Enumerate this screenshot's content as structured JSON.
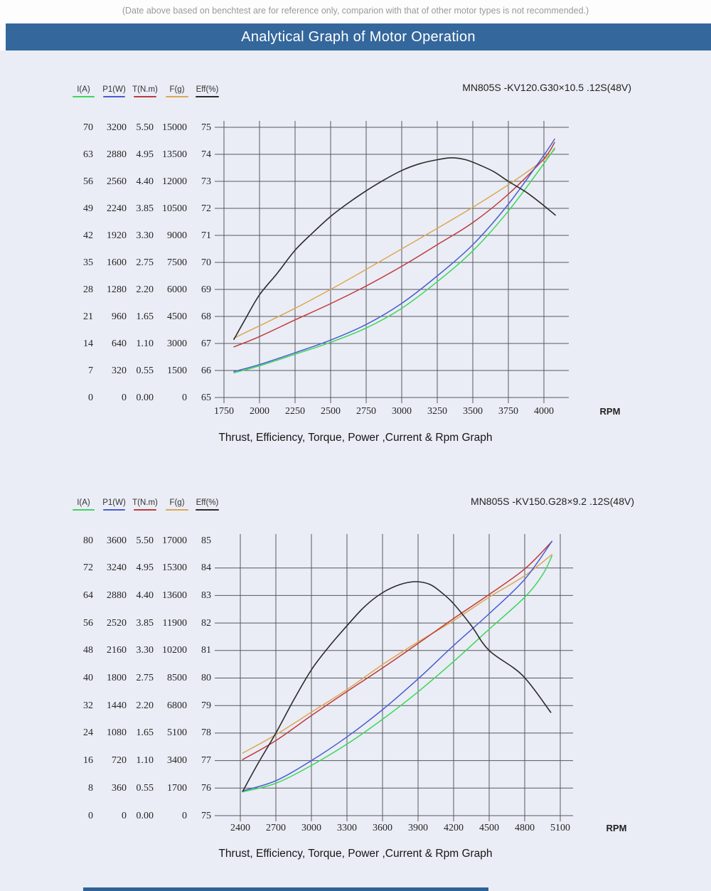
{
  "note": "(Date above based on benchtest are for reference only, comparion with that of other motor types is not recommended.)",
  "header": {
    "title": "Analytical Graph of Motor Operation"
  },
  "colors": {
    "header_bg": "#34679c",
    "page_bg": "#eaedf5",
    "grid": "#55595e",
    "current": "#3bd65a",
    "power": "#4a5cd0",
    "torque": "#c03a3c",
    "thrust": "#dca752",
    "efficiency": "#2b2b2b"
  },
  "chart_data": [
    {
      "type": "line",
      "title": "MN805S -KV120.G30×10.5 .12S(48V)",
      "caption": "Thrust, Efficiency, Torque, Power ,Current & Rpm Graph",
      "x_label": "RPM",
      "x_ticks": [
        1750,
        2000,
        2250,
        2500,
        2750,
        3000,
        3250,
        3500,
        3750,
        4000
      ],
      "x_tick_step": 250,
      "grid": true,
      "legend_position": "top-left",
      "axes": [
        {
          "name": "I(A)",
          "color_key": "current",
          "range": [
            0,
            70
          ],
          "ticks": [
            "70",
            "63",
            "56",
            "49",
            "42",
            "35",
            "28",
            "21",
            "14",
            "7",
            "0"
          ]
        },
        {
          "name": "P1(W)",
          "color_key": "power",
          "range": [
            0,
            3200
          ],
          "ticks": [
            "3200",
            "2880",
            "2560",
            "2240",
            "1920",
            "1600",
            "1280",
            "960",
            "640",
            "320",
            "0"
          ]
        },
        {
          "name": "T(N.m)",
          "color_key": "torque",
          "range": [
            0,
            5.5
          ],
          "ticks": [
            "5.50",
            "4.95",
            "4.40",
            "3.85",
            "3.30",
            "2.75",
            "2.20",
            "1.65",
            "1.10",
            "0.55",
            "0.00"
          ]
        },
        {
          "name": "F(g)",
          "color_key": "thrust",
          "range": [
            0,
            15000
          ],
          "ticks": [
            "15000",
            "13500",
            "12000",
            "10500",
            "9000",
            "7500",
            "6000",
            "4500",
            "3000",
            "1500",
            "0"
          ]
        },
        {
          "name": "Eff(%)",
          "color_key": "efficiency",
          "range": [
            65,
            75
          ],
          "ticks": [
            "75",
            "74",
            "73",
            "72",
            "71",
            "70",
            "69",
            "68",
            "67",
            "66",
            "65"
          ]
        }
      ],
      "series": [
        {
          "name": "I(A)",
          "axis": 0,
          "points": [
            [
              1820,
              6.4
            ],
            [
              2000,
              8.2
            ],
            [
              2250,
              11.2
            ],
            [
              2500,
              14.3
            ],
            [
              2750,
              18.0
            ],
            [
              3000,
              23.1
            ],
            [
              3250,
              30.0
            ],
            [
              3500,
              38.0
            ],
            [
              3750,
              48.3
            ],
            [
              4000,
              60.6
            ],
            [
              4075,
              64.6
            ]
          ]
        },
        {
          "name": "P1(W)",
          "axis": 1,
          "points": [
            [
              1820,
              307
            ],
            [
              2000,
              390
            ],
            [
              2250,
              530
            ],
            [
              2500,
              680
            ],
            [
              2750,
              865
            ],
            [
              3000,
              1115
            ],
            [
              3250,
              1440
            ],
            [
              3500,
              1810
            ],
            [
              3750,
              2290
            ],
            [
              4000,
              2870
            ],
            [
              4075,
              3060
            ]
          ]
        },
        {
          "name": "T(N.m)",
          "axis": 2,
          "points": [
            [
              1820,
              1.03
            ],
            [
              2000,
              1.24
            ],
            [
              2250,
              1.58
            ],
            [
              2500,
              1.91
            ],
            [
              2750,
              2.27
            ],
            [
              3000,
              2.67
            ],
            [
              3250,
              3.11
            ],
            [
              3500,
              3.56
            ],
            [
              3750,
              4.14
            ],
            [
              4000,
              4.86
            ],
            [
              4075,
              5.19
            ]
          ]
        },
        {
          "name": "F(g)",
          "axis": 3,
          "points": [
            [
              1820,
              3300
            ],
            [
              2000,
              3980
            ],
            [
              2250,
              4950
            ],
            [
              2500,
              6000
            ],
            [
              2750,
              7110
            ],
            [
              3000,
              8250
            ],
            [
              3250,
              9390
            ],
            [
              3500,
              10560
            ],
            [
              3750,
              11810
            ],
            [
              4000,
              13200
            ],
            [
              4075,
              13760
            ]
          ]
        },
        {
          "name": "Eff(%)",
          "axis": 4,
          "points": [
            [
              1820,
              67.15
            ],
            [
              1900,
              67.9
            ],
            [
              2000,
              68.8
            ],
            [
              2125,
              69.6
            ],
            [
              2250,
              70.45
            ],
            [
              2375,
              71.1
            ],
            [
              2500,
              71.7
            ],
            [
              2625,
              72.2
            ],
            [
              2750,
              72.65
            ],
            [
              2875,
              73.05
            ],
            [
              3000,
              73.4
            ],
            [
              3125,
              73.65
            ],
            [
              3250,
              73.8
            ],
            [
              3350,
              73.87
            ],
            [
              3450,
              73.8
            ],
            [
              3550,
              73.6
            ],
            [
              3650,
              73.35
            ],
            [
              3750,
              73.0
            ],
            [
              3875,
              72.6
            ],
            [
              4000,
              72.1
            ],
            [
              4080,
              71.75
            ]
          ]
        }
      ]
    },
    {
      "type": "line",
      "title": "MN805S -KV150.G28×9.2 .12S(48V)",
      "caption": "Thrust, Efficiency, Torque, Power ,Current & Rpm Graph",
      "x_label": "RPM",
      "x_ticks": [
        2400,
        2700,
        3000,
        3300,
        3600,
        3900,
        4200,
        4500,
        4800,
        5100
      ],
      "x_tick_step": 300,
      "grid": true,
      "legend_position": "top-left",
      "axes": [
        {
          "name": "I(A)",
          "color_key": "current",
          "range": [
            0,
            80
          ],
          "ticks": [
            "80",
            "72",
            "64",
            "56",
            "48",
            "40",
            "32",
            "24",
            "16",
            "8",
            "0"
          ]
        },
        {
          "name": "P1(W)",
          "color_key": "power",
          "range": [
            0,
            3600
          ],
          "ticks": [
            "3600",
            "3240",
            "2880",
            "2520",
            "2160",
            "1800",
            "1440",
            "1080",
            "720",
            "360",
            "0"
          ]
        },
        {
          "name": "T(N.m)",
          "color_key": "torque",
          "range": [
            0,
            5.5
          ],
          "ticks": [
            "5.50",
            "4.95",
            "4.40",
            "3.85",
            "3.30",
            "2.75",
            "2.20",
            "1.65",
            "1.10",
            "0.55",
            "0.00"
          ]
        },
        {
          "name": "F(g)",
          "color_key": "thrust",
          "range": [
            0,
            17000
          ],
          "ticks": [
            "17000",
            "15300",
            "13600",
            "11900",
            "10200",
            "8500",
            "6800",
            "5100",
            "3400",
            "1700",
            "0"
          ]
        },
        {
          "name": "Eff(%)",
          "color_key": "efficiency",
          "range": [
            75,
            85
          ],
          "ticks": [
            "85",
            "84",
            "83",
            "82",
            "81",
            "80",
            "79",
            "78",
            "77",
            "76",
            "75"
          ]
        }
      ],
      "series": [
        {
          "name": "I(A)",
          "axis": 0,
          "points": [
            [
              2420,
              6.9
            ],
            [
              2700,
              9.4
            ],
            [
              3000,
              14.6
            ],
            [
              3300,
              20.8
            ],
            [
              3600,
              28.0
            ],
            [
              3900,
              36.0
            ],
            [
              4200,
              44.8
            ],
            [
              4500,
              54.2
            ],
            [
              4800,
              63.5
            ],
            [
              4950,
              70.0
            ],
            [
              5030,
              75.5
            ]
          ]
        },
        {
          "name": "P1(W)",
          "axis": 1,
          "points": [
            [
              2420,
              324
            ],
            [
              2700,
              457
            ],
            [
              3000,
              720
            ],
            [
              3300,
              1030
            ],
            [
              3600,
              1386
            ],
            [
              3900,
              1789
            ],
            [
              4200,
              2225
            ],
            [
              4500,
              2642
            ],
            [
              4800,
              3092
            ],
            [
              5030,
              3589
            ]
          ]
        },
        {
          "name": "T(N.m)",
          "axis": 2,
          "points": [
            [
              2420,
              1.12
            ],
            [
              2700,
              1.5
            ],
            [
              3000,
              2.0
            ],
            [
              3300,
              2.48
            ],
            [
              3600,
              2.95
            ],
            [
              3900,
              3.44
            ],
            [
              4200,
              3.94
            ],
            [
              4500,
              4.42
            ],
            [
              4800,
              4.93
            ],
            [
              5030,
              5.48
            ]
          ]
        },
        {
          "name": "F(g)",
          "axis": 3,
          "points": [
            [
              2420,
              3860
            ],
            [
              2700,
              5000
            ],
            [
              3000,
              6390
            ],
            [
              3300,
              7790
            ],
            [
              3600,
              9330
            ],
            [
              3900,
              10730
            ],
            [
              4200,
              12040
            ],
            [
              4500,
              13500
            ],
            [
              4800,
              14820
            ],
            [
              5030,
              16130
            ]
          ]
        },
        {
          "name": "Eff(%)",
          "axis": 4,
          "points": [
            [
              2420,
              75.88
            ],
            [
              2550,
              76.9
            ],
            [
              2700,
              78.0
            ],
            [
              2850,
              79.2
            ],
            [
              3000,
              80.3
            ],
            [
              3150,
              81.15
            ],
            [
              3300,
              81.9
            ],
            [
              3450,
              82.6
            ],
            [
              3600,
              83.1
            ],
            [
              3750,
              83.4
            ],
            [
              3880,
              83.5
            ],
            [
              4000,
              83.4
            ],
            [
              4100,
              83.1
            ],
            [
              4200,
              82.7
            ],
            [
              4350,
              81.9
            ],
            [
              4500,
              81.0
            ],
            [
              4780,
              80.1
            ],
            [
              5020,
              78.75
            ]
          ]
        }
      ]
    }
  ]
}
